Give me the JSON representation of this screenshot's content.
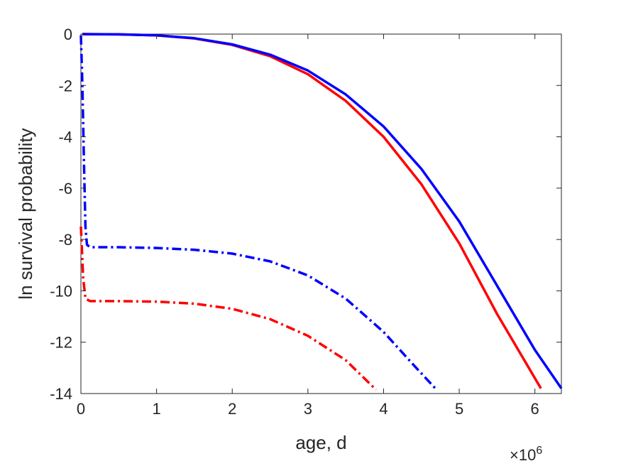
{
  "chart_data": {
    "type": "line",
    "xlabel": "age, d",
    "ylabel": "ln survival probability",
    "x_exponent_label": "×10",
    "x_exponent_power": "6",
    "xlim": [
      0,
      6.35
    ],
    "ylim": [
      -14,
      0
    ],
    "x_ticks": [
      0,
      1,
      2,
      3,
      4,
      5,
      6
    ],
    "y_ticks": [
      0,
      -2,
      -4,
      -6,
      -8,
      -10,
      -12,
      -14
    ],
    "x_tick_labels": [
      "0",
      "1",
      "2",
      "3",
      "4",
      "5",
      "6"
    ],
    "y_tick_labels": [
      "0",
      "-2",
      "-4",
      "-6",
      "-8",
      "-10",
      "-12",
      "-14"
    ],
    "x_unit_scale": 1000000,
    "grid": false,
    "box": true,
    "series": [
      {
        "color": "#ff0000",
        "style": "solid",
        "points": [
          [
            0.02,
            0
          ],
          [
            0.5,
            -0.01
          ],
          [
            1.0,
            -0.05
          ],
          [
            1.5,
            -0.17
          ],
          [
            2.0,
            -0.42
          ],
          [
            2.5,
            -0.86
          ],
          [
            3.0,
            -1.56
          ],
          [
            3.5,
            -2.6
          ],
          [
            4.0,
            -4.0
          ],
          [
            4.5,
            -5.85
          ],
          [
            5.0,
            -8.15
          ],
          [
            5.5,
            -10.9
          ],
          [
            6.08,
            -13.8
          ]
        ]
      },
      {
        "color": "#0000ff",
        "style": "solid",
        "points": [
          [
            0.02,
            0
          ],
          [
            0.5,
            -0.01
          ],
          [
            1.0,
            -0.05
          ],
          [
            1.5,
            -0.16
          ],
          [
            2.0,
            -0.4
          ],
          [
            2.5,
            -0.8
          ],
          [
            3.0,
            -1.42
          ],
          [
            3.5,
            -2.35
          ],
          [
            4.0,
            -3.6
          ],
          [
            4.5,
            -5.25
          ],
          [
            5.0,
            -7.3
          ],
          [
            5.5,
            -9.8
          ],
          [
            6.0,
            -12.3
          ],
          [
            6.35,
            -13.8
          ]
        ]
      },
      {
        "color": "#0000ff",
        "style": "dashdot",
        "points": [
          [
            0.0,
            -0.05
          ],
          [
            0.02,
            -2.0
          ],
          [
            0.04,
            -5.0
          ],
          [
            0.06,
            -7.5
          ],
          [
            0.08,
            -8.2
          ],
          [
            0.12,
            -8.3
          ],
          [
            0.5,
            -8.3
          ],
          [
            1.0,
            -8.33
          ],
          [
            1.5,
            -8.4
          ],
          [
            2.0,
            -8.55
          ],
          [
            2.5,
            -8.85
          ],
          [
            3.0,
            -9.4
          ],
          [
            3.5,
            -10.3
          ],
          [
            4.0,
            -11.6
          ],
          [
            4.4,
            -12.9
          ],
          [
            4.7,
            -13.85
          ]
        ]
      },
      {
        "color": "#ff0000",
        "style": "dashdot",
        "points": [
          [
            0.0,
            -7.5
          ],
          [
            0.03,
            -9.5
          ],
          [
            0.06,
            -10.3
          ],
          [
            0.12,
            -10.4
          ],
          [
            0.5,
            -10.4
          ],
          [
            1.0,
            -10.42
          ],
          [
            1.5,
            -10.5
          ],
          [
            2.0,
            -10.7
          ],
          [
            2.5,
            -11.1
          ],
          [
            3.0,
            -11.75
          ],
          [
            3.5,
            -12.7
          ],
          [
            3.9,
            -13.85
          ]
        ]
      }
    ]
  }
}
